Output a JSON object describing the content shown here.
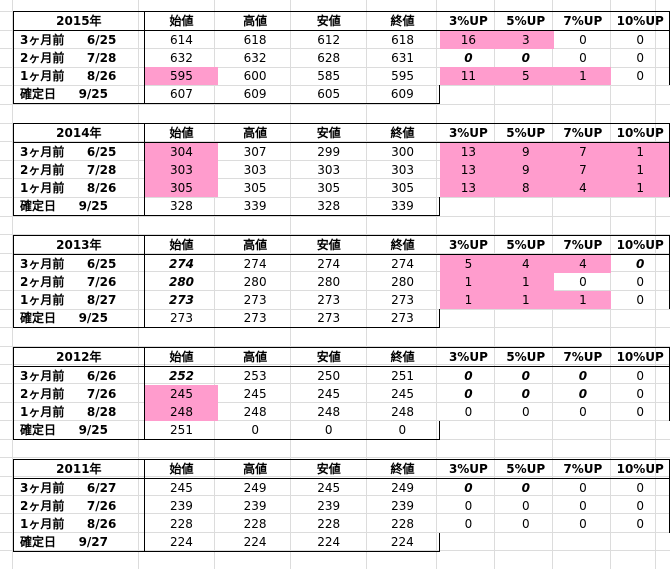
{
  "headers": [
    "始値",
    "高値",
    "安値",
    "終値",
    "3%UP",
    "5%UP",
    "7%UP",
    "10%UP"
  ],
  "blocks": [
    {
      "year": "2015年",
      "rows": [
        {
          "label": "3ヶ月前",
          "date": "6/25",
          "cells": [
            "614",
            "618",
            "612",
            "618",
            "16",
            "3",
            "0",
            "0"
          ],
          "styles": [
            "",
            "",
            "",
            "",
            "pink dark",
            "pink dark",
            "",
            ""
          ]
        },
        {
          "label": "2ヶ月前",
          "date": "7/28",
          "cells": [
            "632",
            "632",
            "628",
            "631",
            "0",
            "0",
            "0",
            "0"
          ],
          "styles": [
            "",
            "",
            "",
            "",
            "gray",
            "gray",
            "",
            ""
          ]
        },
        {
          "label": "1ヶ月前",
          "date": "8/26",
          "cells": [
            "595",
            "600",
            "585",
            "595",
            "11",
            "5",
            "1",
            "0"
          ],
          "styles": [
            "pink dark",
            "",
            "",
            "",
            "pink",
            "pink",
            "pink",
            ""
          ]
        },
        {
          "label": "確定日",
          "date": "9/25",
          "cells": [
            "607",
            "609",
            "605",
            "609",
            "",
            "",
            "",
            ""
          ],
          "styles": [
            "",
            "",
            "",
            "",
            "",
            "",
            "",
            ""
          ]
        }
      ]
    },
    {
      "year": "2014年",
      "rows": [
        {
          "label": "3ヶ月前",
          "date": "6/25",
          "cells": [
            "304",
            "307",
            "299",
            "300",
            "13",
            "9",
            "7",
            "1"
          ],
          "styles": [
            "pink",
            "",
            "",
            "",
            "pink",
            "pink",
            "pink",
            "pink dark"
          ]
        },
        {
          "label": "2ヶ月前",
          "date": "7/28",
          "cells": [
            "303",
            "303",
            "303",
            "303",
            "13",
            "9",
            "7",
            "1"
          ],
          "styles": [
            "pink",
            "",
            "",
            "",
            "pink",
            "pink",
            "pink dark",
            "pink dark"
          ]
        },
        {
          "label": "1ヶ月前",
          "date": "8/26",
          "cells": [
            "305",
            "305",
            "305",
            "305",
            "13",
            "8",
            "4",
            "1"
          ],
          "styles": [
            "pink",
            "",
            "",
            "",
            "pink",
            "pink dark",
            "pink dark",
            "pink dark"
          ]
        },
        {
          "label": "確定日",
          "date": "9/25",
          "cells": [
            "328",
            "339",
            "328",
            "339",
            "",
            "",
            "",
            ""
          ],
          "styles": [
            "",
            "",
            "",
            "",
            "",
            "",
            "",
            ""
          ]
        }
      ]
    },
    {
      "year": "2013年",
      "rows": [
        {
          "label": "3ヶ月前",
          "date": "6/25",
          "cells": [
            "274",
            "274",
            "274",
            "274",
            "5",
            "4",
            "4",
            "0"
          ],
          "styles": [
            "gray",
            "",
            "",
            "",
            "pink",
            "pink",
            "pink",
            "gray"
          ]
        },
        {
          "label": "2ヶ月前",
          "date": "7/26",
          "cells": [
            "280",
            "280",
            "280",
            "280",
            "1",
            "1",
            "0",
            "0"
          ],
          "styles": [
            "gray",
            "",
            "",
            "",
            "pink",
            "pink dark",
            "",
            ""
          ]
        },
        {
          "label": "1ヶ月前",
          "date": "8/27",
          "cells": [
            "273",
            "273",
            "273",
            "273",
            "1",
            "1",
            "1",
            "0"
          ],
          "styles": [
            "gray",
            "",
            "",
            "",
            "pink",
            "pink",
            "pink",
            ""
          ]
        },
        {
          "label": "確定日",
          "date": "9/25",
          "cells": [
            "273",
            "273",
            "273",
            "273",
            "",
            "",
            "",
            ""
          ],
          "styles": [
            "",
            "",
            "",
            "",
            "",
            "",
            "",
            ""
          ]
        }
      ]
    },
    {
      "year": "2012年",
      "rows": [
        {
          "label": "3ヶ月前",
          "date": "6/26",
          "cells": [
            "252",
            "253",
            "250",
            "251",
            "0",
            "0",
            "0",
            "0"
          ],
          "styles": [
            "gray",
            "",
            "",
            "",
            "gray",
            "gray",
            "gray",
            ""
          ]
        },
        {
          "label": "2ヶ月前",
          "date": "7/26",
          "cells": [
            "245",
            "245",
            "245",
            "245",
            "0",
            "0",
            "0",
            "0"
          ],
          "styles": [
            "pink dark",
            "",
            "",
            "",
            "gray",
            "gray",
            "gray",
            ""
          ]
        },
        {
          "label": "1ヶ月前",
          "date": "8/28",
          "cells": [
            "248",
            "248",
            "248",
            "248",
            "0",
            "0",
            "0",
            "0"
          ],
          "styles": [
            "pink dark",
            "",
            "",
            "",
            "",
            "",
            "",
            ""
          ]
        },
        {
          "label": "確定日",
          "date": "9/25",
          "cells": [
            "251",
            "0",
            "0",
            "0",
            "",
            "",
            "",
            ""
          ],
          "styles": [
            "",
            "",
            "",
            "",
            "",
            "",
            "",
            ""
          ]
        }
      ]
    },
    {
      "year": "2011年",
      "rows": [
        {
          "label": "3ヶ月前",
          "date": "6/27",
          "cells": [
            "245",
            "249",
            "245",
            "249",
            "0",
            "0",
            "0",
            "0"
          ],
          "styles": [
            "",
            "",
            "",
            "",
            "gray",
            "gray",
            "",
            ""
          ]
        },
        {
          "label": "2ヶ月前",
          "date": "7/26",
          "cells": [
            "239",
            "239",
            "239",
            "239",
            "0",
            "0",
            "0",
            "0"
          ],
          "styles": [
            "",
            "",
            "",
            "",
            "",
            "",
            "",
            ""
          ]
        },
        {
          "label": "1ヶ月前",
          "date": "8/26",
          "cells": [
            "228",
            "228",
            "228",
            "228",
            "0",
            "0",
            "0",
            "0"
          ],
          "styles": [
            "",
            "",
            "",
            "",
            "",
            "",
            "",
            ""
          ]
        },
        {
          "label": "確定日",
          "date": "9/27",
          "cells": [
            "224",
            "224",
            "224",
            "224",
            "",
            "",
            "",
            ""
          ],
          "styles": [
            "",
            "",
            "",
            "",
            "",
            "",
            "",
            ""
          ]
        }
      ]
    }
  ]
}
